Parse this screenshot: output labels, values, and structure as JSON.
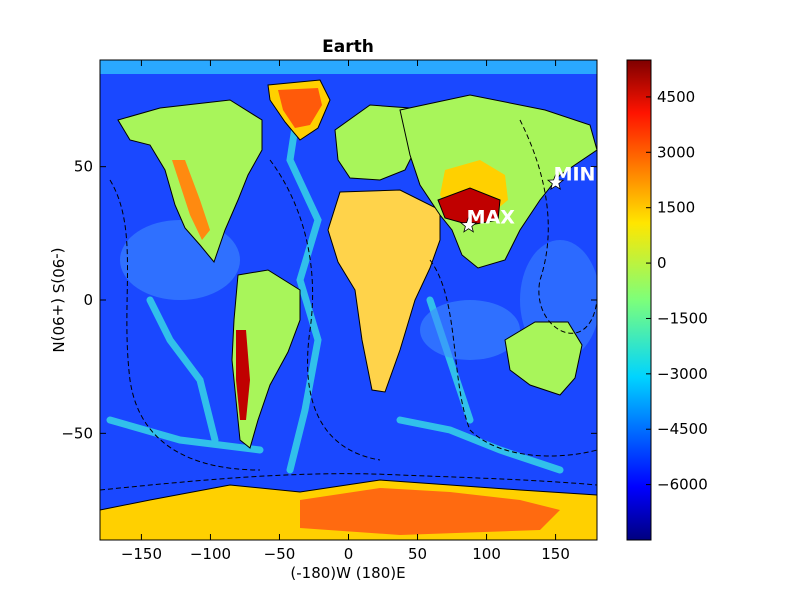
{
  "chart_data": {
    "type": "heatmap",
    "title": "Earth",
    "xlabel": "(-180)W (180)E",
    "ylabel": "(-90)S (+90)N",
    "xlim": [
      -180,
      180
    ],
    "ylim": [
      -90,
      90
    ],
    "x_ticks": [
      -150,
      -100,
      -50,
      0,
      50,
      100,
      150
    ],
    "y_ticks": [
      -50,
      0,
      50
    ],
    "x_tick_labels": [
      "−150",
      "−100",
      "−50",
      "0",
      "50",
      "100",
      "150"
    ],
    "y_tick_labels": [
      "−50",
      "0",
      "50"
    ],
    "colorbar": {
      "min": -7500,
      "max": 5500,
      "ticks": [
        4500,
        3000,
        1500,
        0,
        -1500,
        -3000,
        -4500,
        -6000
      ],
      "tick_labels": [
        "4500",
        "3000",
        "1500",
        "0",
        "−1500",
        "−3000",
        "−4500",
        "−6000"
      ],
      "colormap": "jet"
    },
    "annotations": [
      {
        "label": "MAX",
        "x": 87,
        "y": 28,
        "marker": "star"
      },
      {
        "label": "MIN",
        "x": 150,
        "y": 44,
        "marker": "star"
      }
    ]
  },
  "colors": {
    "deep_ocean": "#1030ff",
    "ocean": "#2f7fff",
    "shelf": "#36d6e8",
    "lowland": "#9cf55c",
    "highland": "#ffd000",
    "mountain": "#ff5a0a",
    "peak": "#b00000",
    "marker": "#ffffff"
  }
}
